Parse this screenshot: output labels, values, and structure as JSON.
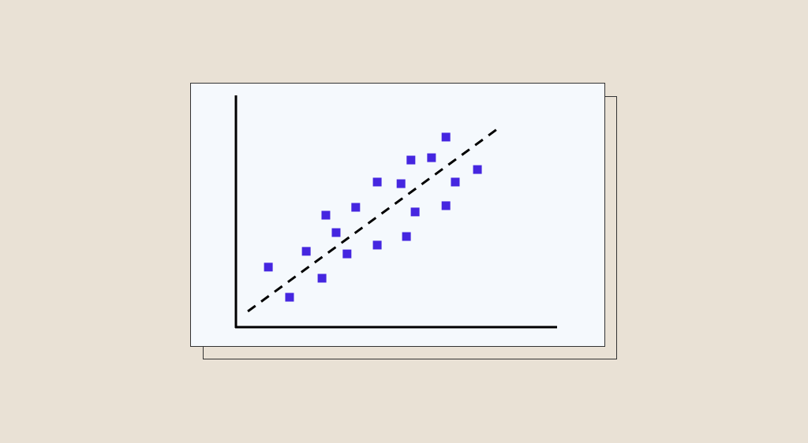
{
  "chart_data": {
    "type": "scatter",
    "title": "",
    "xlabel": "",
    "ylabel": "",
    "xlim": [
      0,
      100
    ],
    "ylim": [
      0,
      100
    ],
    "grid": false,
    "marker": "square",
    "colors": {
      "points": "#4526e0",
      "trendline": "#000000",
      "axes": "#000000",
      "plot_background": "#f5f9fd",
      "page_background": "#e9e1d5"
    },
    "points": [
      {
        "x": 10.1,
        "y": 25.9
      },
      {
        "x": 16.7,
        "y": 12.9
      },
      {
        "x": 21.9,
        "y": 32.7
      },
      {
        "x": 26.8,
        "y": 21.1
      },
      {
        "x": 28.0,
        "y": 48.3
      },
      {
        "x": 31.2,
        "y": 40.8
      },
      {
        "x": 34.6,
        "y": 31.6
      },
      {
        "x": 37.3,
        "y": 51.7
      },
      {
        "x": 44.0,
        "y": 62.6
      },
      {
        "x": 44.0,
        "y": 35.4
      },
      {
        "x": 51.4,
        "y": 61.9
      },
      {
        "x": 53.1,
        "y": 39.1
      },
      {
        "x": 54.5,
        "y": 72.1
      },
      {
        "x": 55.8,
        "y": 49.7
      },
      {
        "x": 60.9,
        "y": 73.1
      },
      {
        "x": 65.4,
        "y": 82.0
      },
      {
        "x": 65.4,
        "y": 52.4
      },
      {
        "x": 68.3,
        "y": 62.6
      },
      {
        "x": 75.2,
        "y": 68.0
      }
    ],
    "trendline": {
      "style": "dashed",
      "from": {
        "x": 3.7,
        "y": 6.8
      },
      "to": {
        "x": 81.6,
        "y": 85.7
      }
    }
  }
}
